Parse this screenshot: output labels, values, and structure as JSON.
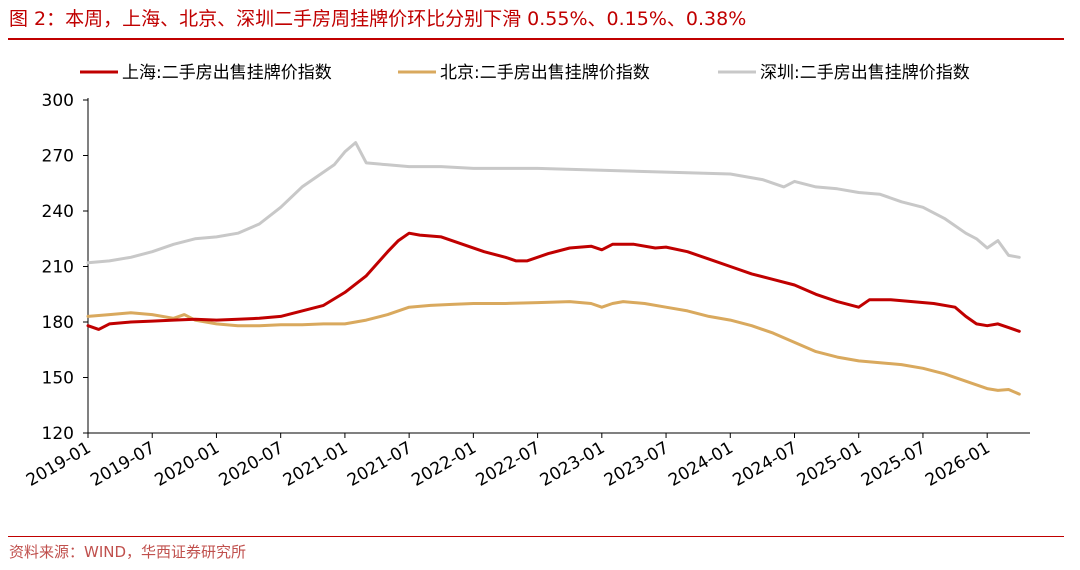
{
  "figure": {
    "title": "图 2：本周，上海、北京、深圳二手房周挂牌价环比分别下滑 0.55%、0.15%、0.38%",
    "source": "资料来源：WIND，华西证券研究所"
  },
  "colors": {
    "accent": "#c00000",
    "shanghai": "#c00000",
    "beijing": "#d9a95e",
    "shenzhen": "#c8c8c8"
  },
  "chart_data": {
    "type": "line",
    "ylim": [
      120,
      300
    ],
    "yticks": [
      120,
      150,
      180,
      210,
      240,
      270,
      300
    ],
    "xlim": [
      "2019-01",
      "2026-05"
    ],
    "xticks": [
      "2019-01",
      "2019-07",
      "2020-01",
      "2020-07",
      "2021-01",
      "2021-07",
      "2022-01",
      "2022-07",
      "2023-01",
      "2023-07",
      "2024-01",
      "2024-07",
      "2025-01",
      "2025-07",
      "2026-01"
    ],
    "legend_position": "top",
    "grid": false,
    "series": [
      {
        "name": "上海:二手房出售挂牌价指数",
        "color": "#c00000",
        "points": [
          [
            "2019-01",
            178
          ],
          [
            "2019-02",
            176
          ],
          [
            "2019-03",
            179
          ],
          [
            "2019-05",
            180
          ],
          [
            "2019-07",
            180.5
          ],
          [
            "2019-09",
            181
          ],
          [
            "2019-11",
            181.5
          ],
          [
            "2020-01",
            181
          ],
          [
            "2020-03",
            181.5
          ],
          [
            "2020-05",
            182
          ],
          [
            "2020-07",
            183
          ],
          [
            "2020-09",
            186
          ],
          [
            "2020-11",
            189
          ],
          [
            "2021-01",
            196
          ],
          [
            "2021-03",
            205
          ],
          [
            "2021-05",
            218
          ],
          [
            "2021-06",
            224
          ],
          [
            "2021-07",
            228
          ],
          [
            "2021-08",
            227
          ],
          [
            "2021-10",
            226
          ],
          [
            "2021-12",
            222
          ],
          [
            "2022-02",
            218
          ],
          [
            "2022-04",
            215
          ],
          [
            "2022-05",
            213
          ],
          [
            "2022-06",
            213
          ],
          [
            "2022-08",
            217
          ],
          [
            "2022-10",
            220
          ],
          [
            "2022-12",
            221
          ],
          [
            "2023-01",
            219
          ],
          [
            "2023-02",
            222
          ],
          [
            "2023-04",
            222
          ],
          [
            "2023-06",
            220
          ],
          [
            "2023-07",
            220.5
          ],
          [
            "2023-09",
            218
          ],
          [
            "2023-11",
            214
          ],
          [
            "2024-01",
            210
          ],
          [
            "2024-03",
            206
          ],
          [
            "2024-05",
            203
          ],
          [
            "2024-07",
            200
          ],
          [
            "2024-09",
            195
          ],
          [
            "2024-11",
            191
          ],
          [
            "2025-01",
            188
          ],
          [
            "2025-02",
            192
          ],
          [
            "2025-04",
            192
          ],
          [
            "2025-06",
            191
          ],
          [
            "2025-08",
            190
          ],
          [
            "2025-10",
            188
          ],
          [
            "2025-11",
            183
          ],
          [
            "2025-12",
            179
          ],
          [
            "2026-01",
            178
          ],
          [
            "2026-02",
            179
          ],
          [
            "2026-03",
            177
          ],
          [
            "2026-04",
            175
          ]
        ]
      },
      {
        "name": "北京:二手房出售挂牌价指数",
        "color": "#d9a95e",
        "points": [
          [
            "2019-01",
            183
          ],
          [
            "2019-03",
            184
          ],
          [
            "2019-05",
            185
          ],
          [
            "2019-07",
            184
          ],
          [
            "2019-09",
            182
          ],
          [
            "2019-10",
            184
          ],
          [
            "2019-11",
            181
          ],
          [
            "2019-12",
            180
          ],
          [
            "2020-01",
            179
          ],
          [
            "2020-03",
            178
          ],
          [
            "2020-05",
            178
          ],
          [
            "2020-07",
            178.5
          ],
          [
            "2020-09",
            178.5
          ],
          [
            "2020-11",
            179
          ],
          [
            "2021-01",
            179
          ],
          [
            "2021-03",
            181
          ],
          [
            "2021-05",
            184
          ],
          [
            "2021-07",
            188
          ],
          [
            "2021-09",
            189
          ],
          [
            "2021-11",
            189.5
          ],
          [
            "2022-01",
            190
          ],
          [
            "2022-04",
            190
          ],
          [
            "2022-07",
            190.5
          ],
          [
            "2022-10",
            191
          ],
          [
            "2022-12",
            190
          ],
          [
            "2023-01",
            188
          ],
          [
            "2023-02",
            190
          ],
          [
            "2023-03",
            191
          ],
          [
            "2023-05",
            190
          ],
          [
            "2023-07",
            188
          ],
          [
            "2023-09",
            186
          ],
          [
            "2023-11",
            183
          ],
          [
            "2024-01",
            181
          ],
          [
            "2024-03",
            178
          ],
          [
            "2024-05",
            174
          ],
          [
            "2024-07",
            169
          ],
          [
            "2024-09",
            164
          ],
          [
            "2024-11",
            161
          ],
          [
            "2025-01",
            159
          ],
          [
            "2025-03",
            158
          ],
          [
            "2025-05",
            157
          ],
          [
            "2025-07",
            155
          ],
          [
            "2025-09",
            152
          ],
          [
            "2025-11",
            148
          ],
          [
            "2026-01",
            144
          ],
          [
            "2026-02",
            143
          ],
          [
            "2026-03",
            143.5
          ],
          [
            "2026-04",
            141
          ]
        ]
      },
      {
        "name": "深圳:二手房出售挂牌价指数",
        "color": "#c8c8c8",
        "points": [
          [
            "2019-01",
            212
          ],
          [
            "2019-03",
            213
          ],
          [
            "2019-05",
            215
          ],
          [
            "2019-07",
            218
          ],
          [
            "2019-09",
            222
          ],
          [
            "2019-11",
            225
          ],
          [
            "2020-01",
            226
          ],
          [
            "2020-03",
            228
          ],
          [
            "2020-05",
            233
          ],
          [
            "2020-07",
            242
          ],
          [
            "2020-09",
            253
          ],
          [
            "2020-11",
            261
          ],
          [
            "2020-12",
            265
          ],
          [
            "2021-01",
            272
          ],
          [
            "2021-02",
            277
          ],
          [
            "2021-03",
            266
          ],
          [
            "2021-05",
            265
          ],
          [
            "2021-07",
            264
          ],
          [
            "2021-10",
            264
          ],
          [
            "2022-01",
            263
          ],
          [
            "2022-07",
            263
          ],
          [
            "2023-01",
            262
          ],
          [
            "2023-07",
            261
          ],
          [
            "2024-01",
            260
          ],
          [
            "2024-04",
            257
          ],
          [
            "2024-06",
            253
          ],
          [
            "2024-07",
            256
          ],
          [
            "2024-09",
            253
          ],
          [
            "2024-11",
            252
          ],
          [
            "2025-01",
            250
          ],
          [
            "2025-03",
            249
          ],
          [
            "2025-05",
            245
          ],
          [
            "2025-07",
            242
          ],
          [
            "2025-09",
            236
          ],
          [
            "2025-11",
            228
          ],
          [
            "2025-12",
            225
          ],
          [
            "2026-01",
            220
          ],
          [
            "2026-02",
            224
          ],
          [
            "2026-03",
            216
          ],
          [
            "2026-04",
            215
          ]
        ]
      }
    ]
  }
}
